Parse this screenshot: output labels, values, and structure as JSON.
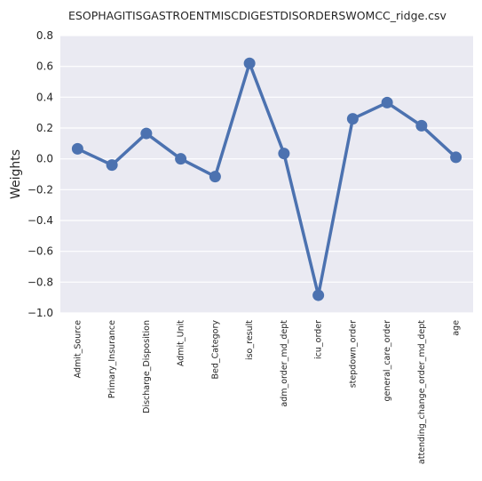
{
  "chart_data": {
    "type": "line",
    "title": "ESOPHAGITISGASTROENTMISCDIGESTDISORDERSWOMCC_ridge.csv",
    "xlabel": "",
    "ylabel": "Weights",
    "ylim": [
      -1.0,
      0.8
    ],
    "yticks": [
      "0.8",
      "0.6",
      "0.4",
      "0.2",
      "0.0",
      "−0.2",
      "−0.4",
      "−0.6",
      "−0.8",
      "−1.0"
    ],
    "ytick_values": [
      0.8,
      0.6,
      0.4,
      0.2,
      0.0,
      -0.2,
      -0.4,
      -0.6,
      -0.8,
      -1.0
    ],
    "categories": [
      "Admit_Source",
      "Primary_Insurance",
      "Discharge_Disposition",
      "Admit_Unit",
      "Bed_Category",
      "iso_result",
      "adm_order_md_dept",
      "icu_order",
      "stepdown_order",
      "general_care_order",
      "attending_change_order_md_dept",
      "age"
    ],
    "values": [
      0.065,
      -0.04,
      0.165,
      0.0,
      -0.115,
      0.62,
      0.035,
      -0.885,
      0.26,
      0.365,
      0.215,
      0.01
    ],
    "grid": true,
    "colors": {
      "line": "#4c72b0",
      "background": "#eaeaf2",
      "grid": "#ffffff"
    }
  }
}
